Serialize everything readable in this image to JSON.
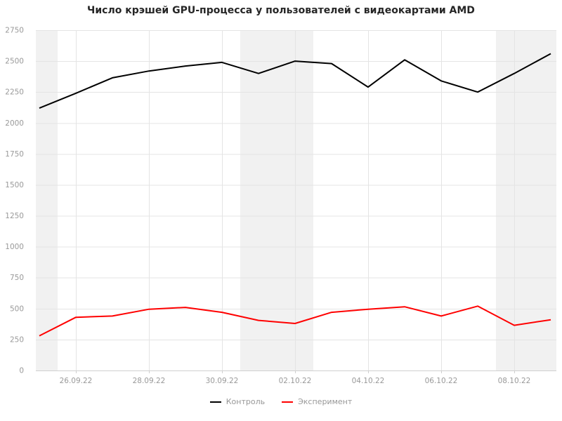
{
  "title": "Число крэшей GPU-процесса у пользователей с видеокартами AMD",
  "chart_data": {
    "type": "line",
    "x": [
      "25.09.22",
      "26.09.22",
      "27.09.22",
      "28.09.22",
      "29.09.22",
      "30.09.22",
      "01.10.22",
      "02.10.22",
      "03.10.22",
      "04.10.22",
      "05.10.22",
      "06.10.22",
      "07.10.22",
      "08.10.22",
      "09.10.22"
    ],
    "x_tick_indices": [
      1,
      3,
      5,
      7,
      9,
      11,
      13
    ],
    "series": [
      {
        "name": "Контроль",
        "color": "#000000",
        "values": [
          2120,
          2240,
          2365,
          2420,
          2460,
          2490,
          2400,
          2500,
          2480,
          2290,
          2510,
          2340,
          2250,
          2400,
          2560
        ]
      },
      {
        "name": "Эксперимент",
        "color": "#ff0000",
        "values": [
          280,
          430,
          440,
          495,
          510,
          470,
          405,
          380,
          470,
          495,
          515,
          440,
          520,
          365,
          410
        ]
      }
    ],
    "ylim": [
      0,
      2750
    ],
    "y_ticks": [
      0,
      250,
      500,
      750,
      1000,
      1250,
      1500,
      1750,
      2000,
      2250,
      2500,
      2750
    ],
    "grid": true,
    "legend_position": "bottom",
    "weekend_bands_day_ranges": [
      [
        -0.5,
        0.5
      ],
      [
        5.5,
        7.5
      ],
      [
        12.5,
        14.5
      ]
    ],
    "colors": {
      "band": "#f1f1f1",
      "gridline": "#e4e4e4",
      "axis_line": "#cfcfcf",
      "tick_label": "#999999",
      "title": "#262626",
      "legend_text": "#979797"
    }
  }
}
